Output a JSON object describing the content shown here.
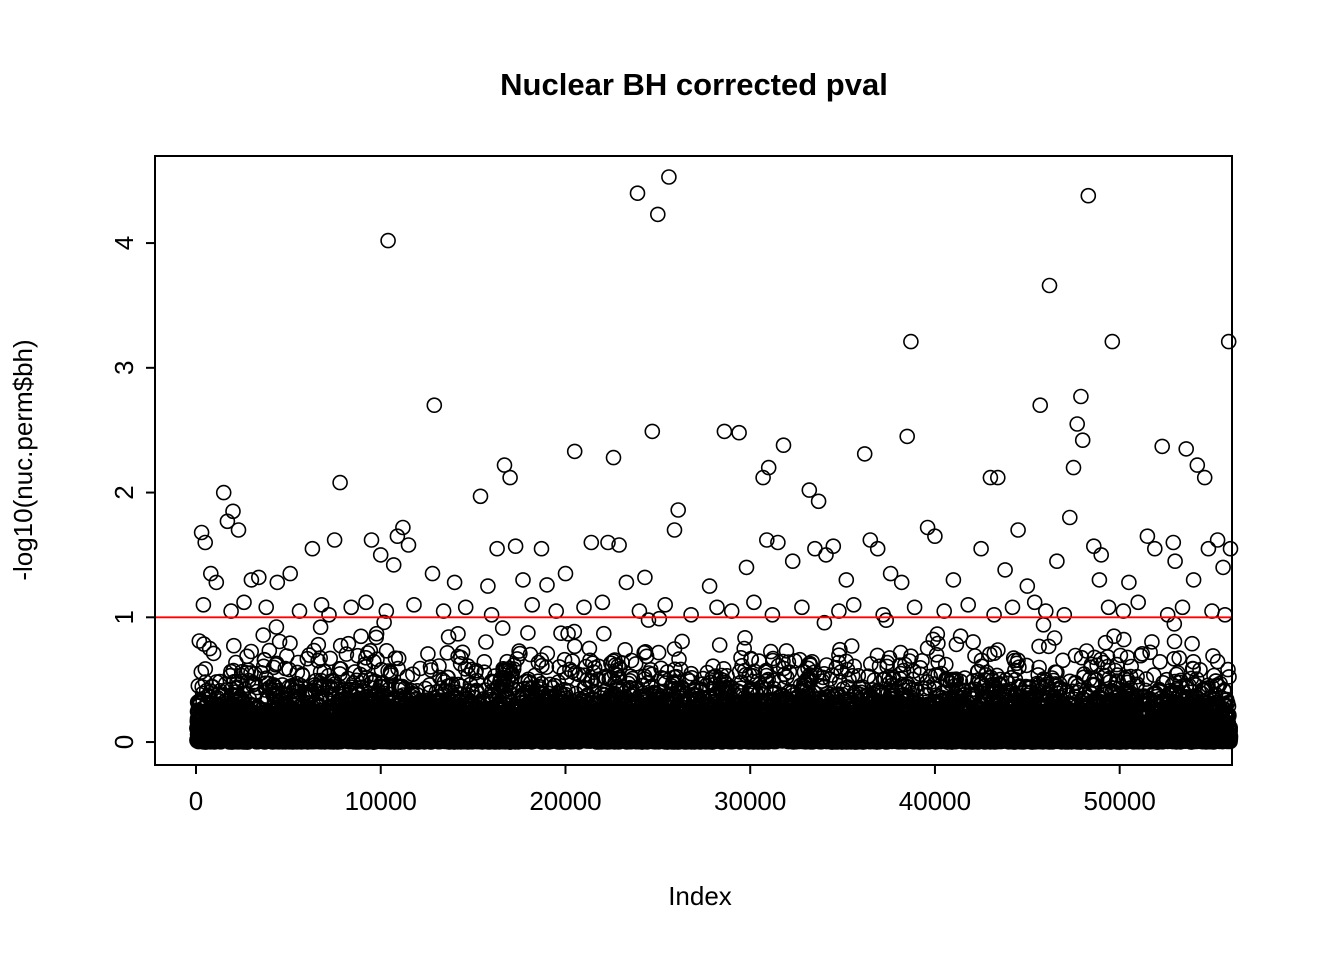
{
  "chart_data": {
    "type": "scatter",
    "title": "Nuclear BH corrected pval",
    "xlabel": "Index",
    "ylabel": "-log10(nuc.perm$bh)",
    "xlim": [
      -2220,
      56080
    ],
    "ylim": [
      -0.184,
      4.698
    ],
    "x_ticks": [
      0,
      10000,
      20000,
      30000,
      40000,
      50000
    ],
    "y_ticks": [
      0,
      1,
      2,
      3,
      4
    ],
    "grid": false,
    "legend": "none",
    "marker": {
      "shape": "open-circle",
      "stroke_color": "#000000",
      "fill": "none"
    },
    "threshold_line": {
      "y": 1,
      "color": "#FF0000",
      "style": "solid"
    },
    "outlier_points": [
      [
        10400,
        4.02
      ],
      [
        23900,
        4.4
      ],
      [
        25000,
        4.23
      ],
      [
        25600,
        4.53
      ],
      [
        48300,
        4.38
      ],
      [
        46200,
        3.66
      ],
      [
        38700,
        3.21
      ],
      [
        49600,
        3.21
      ],
      [
        55900,
        3.21
      ],
      [
        12900,
        2.7
      ],
      [
        45700,
        2.7
      ],
      [
        47900,
        2.77
      ],
      [
        24700,
        2.49
      ],
      [
        28600,
        2.49
      ],
      [
        29400,
        2.48
      ],
      [
        38500,
        2.45
      ],
      [
        31800,
        2.38
      ],
      [
        52300,
        2.37
      ],
      [
        47700,
        2.55
      ],
      [
        48000,
        2.42
      ],
      [
        36200,
        2.31
      ],
      [
        20500,
        2.33
      ],
      [
        22600,
        2.28
      ],
      [
        53600,
        2.35
      ],
      [
        16700,
        2.22
      ],
      [
        17000,
        2.12
      ],
      [
        31000,
        2.2
      ],
      [
        30700,
        2.12
      ],
      [
        33200,
        2.02
      ],
      [
        43000,
        2.12
      ],
      [
        43400,
        2.12
      ],
      [
        47500,
        2.2
      ],
      [
        54200,
        2.22
      ],
      [
        54600,
        2.12
      ],
      [
        7800,
        2.08
      ],
      [
        1500,
        2.0
      ],
      [
        15400,
        1.97
      ],
      [
        33700,
        1.93
      ],
      [
        2000,
        1.85
      ],
      [
        26100,
        1.86
      ],
      [
        47300,
        1.8
      ],
      [
        300,
        1.68
      ],
      [
        500,
        1.6
      ],
      [
        1700,
        1.77
      ],
      [
        2300,
        1.7
      ],
      [
        6300,
        1.55
      ],
      [
        7500,
        1.62
      ],
      [
        9500,
        1.62
      ],
      [
        10000,
        1.5
      ],
      [
        10900,
        1.65
      ],
      [
        11200,
        1.72
      ],
      [
        11500,
        1.58
      ],
      [
        16300,
        1.55
      ],
      [
        17300,
        1.57
      ],
      [
        18700,
        1.55
      ],
      [
        21400,
        1.6
      ],
      [
        22300,
        1.6
      ],
      [
        22900,
        1.58
      ],
      [
        25900,
        1.7
      ],
      [
        30900,
        1.62
      ],
      [
        31500,
        1.6
      ],
      [
        33500,
        1.55
      ],
      [
        34100,
        1.5
      ],
      [
        34500,
        1.57
      ],
      [
        36500,
        1.62
      ],
      [
        36900,
        1.55
      ],
      [
        39600,
        1.72
      ],
      [
        40000,
        1.65
      ],
      [
        42500,
        1.55
      ],
      [
        44500,
        1.7
      ],
      [
        48600,
        1.57
      ],
      [
        49000,
        1.5
      ],
      [
        51500,
        1.65
      ],
      [
        51900,
        1.55
      ],
      [
        52900,
        1.6
      ],
      [
        54800,
        1.55
      ],
      [
        55300,
        1.62
      ],
      [
        56000,
        1.55
      ],
      [
        800,
        1.35
      ],
      [
        1100,
        1.28
      ],
      [
        3000,
        1.3
      ],
      [
        3400,
        1.32
      ],
      [
        4400,
        1.28
      ],
      [
        5100,
        1.35
      ],
      [
        10700,
        1.42
      ],
      [
        12800,
        1.35
      ],
      [
        14000,
        1.28
      ],
      [
        15800,
        1.25
      ],
      [
        17700,
        1.3
      ],
      [
        19000,
        1.26
      ],
      [
        20000,
        1.35
      ],
      [
        23300,
        1.28
      ],
      [
        24300,
        1.32
      ],
      [
        27800,
        1.25
      ],
      [
        29800,
        1.4
      ],
      [
        32300,
        1.45
      ],
      [
        35200,
        1.3
      ],
      [
        37600,
        1.35
      ],
      [
        38200,
        1.28
      ],
      [
        41000,
        1.3
      ],
      [
        43800,
        1.38
      ],
      [
        45000,
        1.25
      ],
      [
        46600,
        1.45
      ],
      [
        48900,
        1.3
      ],
      [
        50500,
        1.28
      ],
      [
        53000,
        1.45
      ],
      [
        54000,
        1.3
      ],
      [
        55600,
        1.4
      ],
      [
        400,
        1.1
      ],
      [
        1900,
        1.05
      ],
      [
        2600,
        1.12
      ],
      [
        3800,
        1.08
      ],
      [
        5600,
        1.05
      ],
      [
        6800,
        1.1
      ],
      [
        7200,
        1.02
      ],
      [
        8400,
        1.08
      ],
      [
        9200,
        1.12
      ],
      [
        10300,
        1.05
      ],
      [
        11800,
        1.1
      ],
      [
        13400,
        1.05
      ],
      [
        14600,
        1.08
      ],
      [
        16000,
        1.02
      ],
      [
        18200,
        1.1
      ],
      [
        19500,
        1.05
      ],
      [
        21000,
        1.08
      ],
      [
        22000,
        1.12
      ],
      [
        24000,
        1.05
      ],
      [
        25400,
        1.1
      ],
      [
        26800,
        1.02
      ],
      [
        28200,
        1.08
      ],
      [
        29000,
        1.05
      ],
      [
        30200,
        1.12
      ],
      [
        31200,
        1.02
      ],
      [
        32800,
        1.08
      ],
      [
        34800,
        1.05
      ],
      [
        35600,
        1.1
      ],
      [
        37200,
        1.02
      ],
      [
        38900,
        1.08
      ],
      [
        40500,
        1.05
      ],
      [
        41800,
        1.1
      ],
      [
        43200,
        1.02
      ],
      [
        44200,
        1.08
      ],
      [
        45400,
        1.12
      ],
      [
        46000,
        1.05
      ],
      [
        47000,
        1.02
      ],
      [
        49400,
        1.08
      ],
      [
        50200,
        1.05
      ],
      [
        51000,
        1.12
      ],
      [
        52600,
        1.02
      ],
      [
        53400,
        1.08
      ],
      [
        55000,
        1.05
      ],
      [
        55700,
        1.02
      ]
    ],
    "dense_band": {
      "description": "Thousands of open-circle points densely packed between y=0 and y~0.9, forming a nearly solid black band below y~0.35, uniformly spread across the full x range",
      "count": 12000,
      "seed": 7,
      "x_range": [
        50,
        56000
      ],
      "y_distribution": "exponential",
      "y_scale": 0.15,
      "y_max": 0.99
    }
  }
}
